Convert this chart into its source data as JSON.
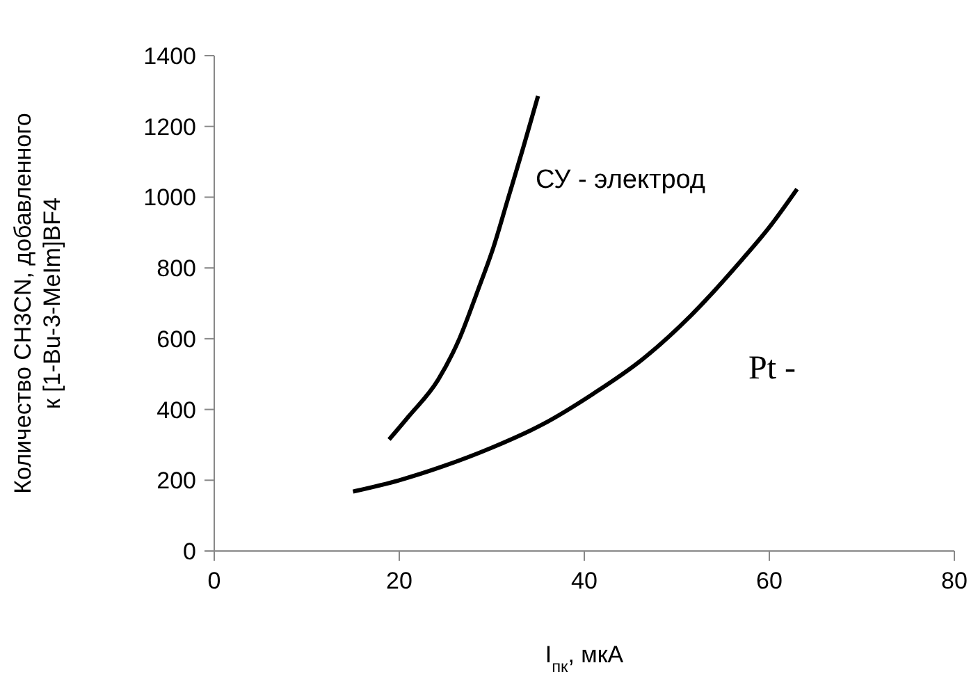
{
  "chart_data": {
    "type": "line",
    "xlabel": "I$_{пк}$, мкА",
    "ylabel": "Количество CH3CN, добавленного к [1-Bu-3-MeIm]BF4",
    "series": [
      {
        "name": "СУ - электрод",
        "color": "#000000",
        "x": [
          18.9,
          21,
          24.2,
          26.5,
          28.5,
          30.2,
          31.7,
          33.4,
          35
        ],
        "values": [
          315,
          380,
          484,
          600,
          737,
          860,
          991,
          1140,
          1286
        ]
      },
      {
        "name": "Pt -",
        "color": "#000000",
        "x": [
          15,
          20,
          24.8,
          30,
          35.5,
          41,
          46.2,
          51.5,
          57,
          60,
          63
        ],
        "values": [
          168,
          200,
          240,
          292,
          358,
          445,
          540,
          665,
          822,
          915,
          1023
        ]
      }
    ],
    "xlim": [
      0,
      80
    ],
    "xticks": [
      0,
      20,
      40,
      60,
      80
    ],
    "ylim": [
      0,
      1400
    ],
    "yticks": [
      0,
      200,
      400,
      600,
      800,
      1000,
      1200,
      1400
    ],
    "grid": false,
    "legend": false,
    "marker": "none",
    "line_style": "solid"
  }
}
